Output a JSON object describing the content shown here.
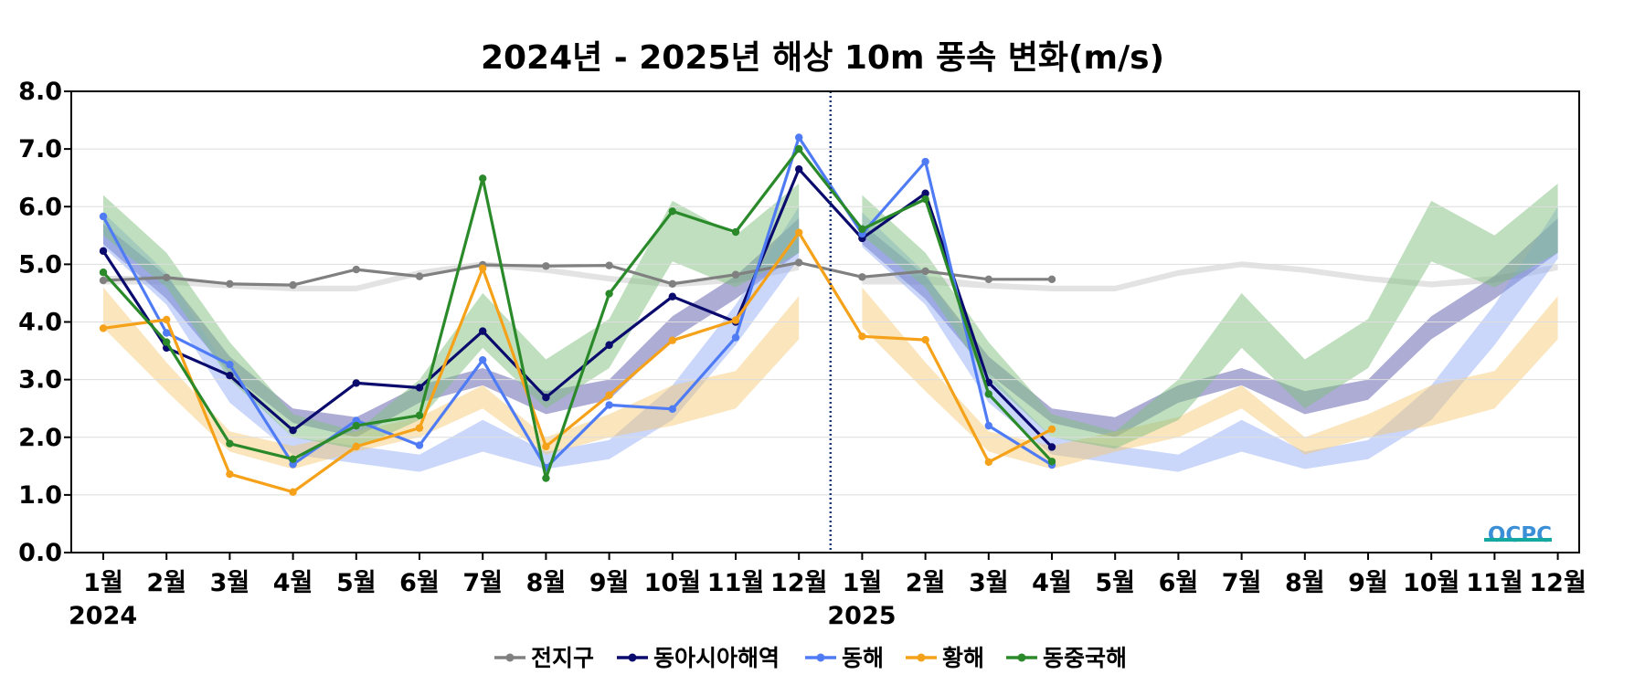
{
  "chart_data": {
    "type": "line",
    "title": "2024년 - 2025년 해상 10m 풍속 변화(m/s)",
    "ylim": [
      0,
      8
    ],
    "yticks": [
      "0.0",
      "1.0",
      "2.0",
      "3.0",
      "4.0",
      "5.0",
      "6.0",
      "7.0",
      "8.0"
    ],
    "x_tick_labels": [
      "1월",
      "2월",
      "3월",
      "4월",
      "5월",
      "6월",
      "7월",
      "8월",
      "9월",
      "10월",
      "11월",
      "12월",
      "1월",
      "2월",
      "3월",
      "4월",
      "5월",
      "6월",
      "7월",
      "8월",
      "9월",
      "10월",
      "11월",
      "12월"
    ],
    "year_labels": [
      {
        "text": "2024",
        "index": 0
      },
      {
        "text": "2025",
        "index": 12
      }
    ],
    "divider_index": 11.5,
    "grid": true,
    "legend_position": "bottom-center",
    "logo": "OCPC",
    "series": [
      {
        "name": "전지구",
        "color": "#808080",
        "values": [
          4.72,
          4.77,
          4.66,
          4.64,
          4.91,
          4.79,
          4.99,
          4.97,
          4.98,
          4.66,
          4.82,
          5.03,
          4.78,
          4.88,
          4.74,
          4.74
        ]
      },
      {
        "name": "동아시아해역",
        "color": "#0b0b6e",
        "values": [
          5.23,
          3.55,
          3.07,
          2.12,
          2.94,
          2.86,
          3.84,
          2.69,
          3.6,
          4.44,
          4.0,
          6.65,
          5.45,
          6.23,
          2.95,
          1.83
        ]
      },
      {
        "name": "동해",
        "color": "#4f7cf5",
        "values": [
          5.83,
          3.81,
          3.26,
          1.53,
          2.29,
          1.86,
          3.34,
          1.47,
          2.56,
          2.49,
          3.73,
          7.2,
          5.53,
          6.78,
          2.2,
          1.52
        ]
      },
      {
        "name": "황해",
        "color": "#f5a21a",
        "values": [
          3.89,
          4.04,
          1.36,
          1.05,
          1.84,
          2.16,
          4.93,
          1.84,
          2.73,
          3.68,
          4.03,
          5.55,
          3.75,
          3.69,
          1.57,
          2.14
        ]
      },
      {
        "name": "동중국해",
        "color": "#2a8a2a",
        "values": [
          4.86,
          3.65,
          1.89,
          1.62,
          2.2,
          2.38,
          6.49,
          1.29,
          4.49,
          5.92,
          5.56,
          7.0,
          5.61,
          6.13,
          2.75,
          1.58
        ]
      }
    ],
    "climatology_bands": [
      {
        "series": "전지구",
        "color": "#cccccc",
        "opacity": 0.55,
        "low": [
          4.65,
          4.65,
          4.58,
          4.53,
          4.53,
          4.8,
          4.95,
          4.85,
          4.7,
          4.6,
          4.68,
          4.9
        ],
        "high": [
          4.8,
          4.8,
          4.68,
          4.63,
          4.63,
          4.9,
          5.05,
          4.95,
          4.8,
          4.7,
          4.8,
          5.0
        ]
      },
      {
        "series": "동아시아해역",
        "color": "#4848a0",
        "opacity": 0.45,
        "low": [
          5.35,
          4.4,
          3.1,
          2.25,
          2.0,
          2.6,
          2.9,
          2.4,
          2.65,
          3.7,
          4.4,
          5.2
        ],
        "high": [
          5.7,
          4.8,
          3.4,
          2.5,
          2.35,
          2.9,
          3.2,
          2.8,
          3.0,
          4.1,
          4.8,
          5.8
        ]
      },
      {
        "series": "동해",
        "color": "#8aa6f7",
        "opacity": 0.45,
        "low": [
          5.3,
          4.3,
          2.6,
          1.7,
          1.55,
          1.4,
          1.75,
          1.45,
          1.62,
          2.3,
          3.6,
          5.1
        ],
        "high": [
          5.9,
          4.85,
          3.1,
          2.0,
          1.85,
          1.7,
          2.3,
          1.75,
          1.95,
          2.9,
          4.3,
          6.0
        ]
      },
      {
        "series": "황해",
        "color": "#f5c66a",
        "opacity": 0.45,
        "low": [
          3.9,
          2.8,
          1.75,
          1.45,
          1.75,
          2.0,
          2.5,
          1.7,
          2.0,
          2.2,
          2.5,
          3.7
        ],
        "high": [
          4.6,
          3.3,
          2.1,
          1.85,
          2.1,
          2.35,
          2.9,
          2.0,
          2.4,
          2.9,
          3.15,
          4.45
        ]
      },
      {
        "series": "동중국해",
        "color": "#7fbf7f",
        "opacity": 0.5,
        "low": [
          5.5,
          4.6,
          3.0,
          2.0,
          1.8,
          2.3,
          3.55,
          2.5,
          3.2,
          5.05,
          4.6,
          5.2
        ],
        "high": [
          6.2,
          5.2,
          3.65,
          2.4,
          2.1,
          3.0,
          4.5,
          3.35,
          4.05,
          6.1,
          5.5,
          6.4
        ]
      }
    ]
  }
}
